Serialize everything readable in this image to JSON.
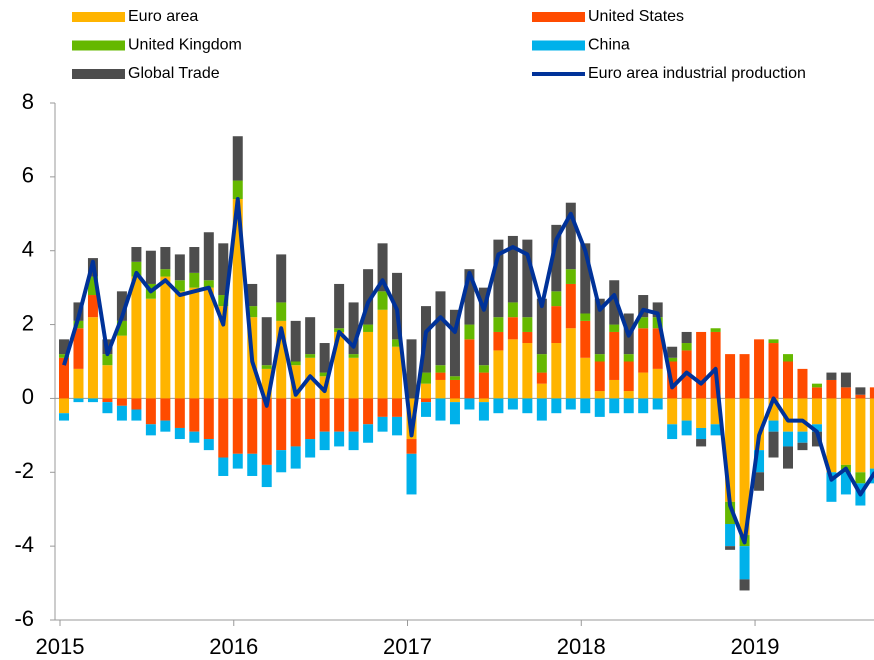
{
  "chart_data": {
    "type": "bar",
    "stacked": true,
    "categories": [
      "2015",
      null,
      null,
      null,
      null,
      null,
      null,
      null,
      null,
      null,
      null,
      null,
      "2016",
      null,
      null,
      null,
      null,
      null,
      null,
      null,
      null,
      null,
      null,
      null,
      "2017",
      null,
      null,
      null,
      null,
      null,
      null,
      null,
      null,
      null,
      null,
      null,
      "2018",
      null,
      null,
      null,
      null,
      null,
      null,
      null,
      null,
      null,
      null,
      null,
      "2019",
      null,
      null,
      null,
      null,
      null,
      null,
      null,
      null
    ],
    "ylim": [
      -6,
      8
    ],
    "yticks": [
      -6,
      -4,
      -2,
      0,
      2,
      4,
      6,
      8
    ],
    "series": [
      {
        "name": "Euro area",
        "color": "#FFB400",
        "values": [
          -0.4,
          0.8,
          2.2,
          0.9,
          1.7,
          3.3,
          2.7,
          3.3,
          2.9,
          3.0,
          3.0,
          2.5,
          5.4,
          2.2,
          0.8,
          2.1,
          0.9,
          1.1,
          0.6,
          1.8,
          1.1,
          1.8,
          2.4,
          1.4,
          -1.1,
          0.4,
          0.5,
          -0.1,
          0.0,
          -0.1,
          1.3,
          1.6,
          1.5,
          0.4,
          1.5,
          1.9,
          1.1,
          0.2,
          0.5,
          0.2,
          0.7,
          0.8,
          -0.7,
          -0.6,
          -0.8,
          -0.7,
          -2.8,
          -3.7,
          -1.4,
          -0.6,
          -0.9,
          -0.9,
          -0.7,
          -2.0,
          -1.8,
          -2.0,
          -1.9
        ]
      },
      {
        "name": "United States",
        "color": "#FF4B00",
        "values": [
          1.1,
          1.1,
          0.6,
          -0.1,
          -0.2,
          -0.3,
          -0.7,
          -0.6,
          -0.8,
          -0.9,
          -1.1,
          -1.6,
          -1.5,
          -1.5,
          -1.8,
          -1.4,
          -1.3,
          -1.1,
          -0.9,
          -0.9,
          -0.9,
          -0.7,
          -0.5,
          -0.5,
          -0.4,
          -0.1,
          0.2,
          0.5,
          1.6,
          0.7,
          0.5,
          0.6,
          0.3,
          0.3,
          1.0,
          1.2,
          1.0,
          0.8,
          1.3,
          0.8,
          1.2,
          1.1,
          1.0,
          1.3,
          1.8,
          1.8,
          1.2,
          1.2,
          1.6,
          1.5,
          1.0,
          0.8,
          0.3,
          0.5,
          0.3,
          0.1,
          0.3
        ]
      },
      {
        "name": "United Kingdom",
        "color": "#65B800",
        "values": [
          0.1,
          0.2,
          0.5,
          0.3,
          0.4,
          0.4,
          0.4,
          0.2,
          0.3,
          0.4,
          0.2,
          0.3,
          0.5,
          0.3,
          0.1,
          0.5,
          0.1,
          0.1,
          0.1,
          0.1,
          0.1,
          0.2,
          0.5,
          0.2,
          0.0,
          0.3,
          0.2,
          0.1,
          0.4,
          0.2,
          0.4,
          0.4,
          0.4,
          0.5,
          0.4,
          0.4,
          0.2,
          0.2,
          0.2,
          0.2,
          0.3,
          0.3,
          0.1,
          0.2,
          0.0,
          0.1,
          -0.6,
          -0.3,
          0.0,
          0.1,
          0.2,
          0.0,
          0.1,
          0.0,
          -0.2,
          -0.3,
          0.0
        ]
      },
      {
        "name": "China",
        "color": "#00B1EA",
        "values": [
          -0.2,
          -0.1,
          -0.1,
          -0.3,
          -0.4,
          -0.3,
          -0.3,
          -0.3,
          -0.3,
          -0.3,
          -0.3,
          -0.5,
          -0.4,
          -0.6,
          -0.6,
          -0.6,
          -0.6,
          -0.5,
          -0.5,
          -0.4,
          -0.5,
          -0.5,
          -0.4,
          -0.5,
          -1.1,
          -0.4,
          -0.6,
          -0.6,
          -0.3,
          -0.5,
          -0.4,
          -0.3,
          -0.4,
          -0.6,
          -0.4,
          -0.3,
          -0.4,
          -0.5,
          -0.4,
          -0.4,
          -0.4,
          -0.3,
          -0.4,
          -0.4,
          -0.3,
          -0.3,
          -0.6,
          -0.9,
          -0.6,
          -0.3,
          -0.4,
          -0.3,
          -0.2,
          -0.8,
          -0.6,
          -0.6,
          -0.4
        ]
      },
      {
        "name": "Global Trade",
        "color": "#4D4D4D",
        "values": [
          0.4,
          0.5,
          0.5,
          0.4,
          0.8,
          0.4,
          0.9,
          0.6,
          0.7,
          0.7,
          1.3,
          1.4,
          1.2,
          0.6,
          1.3,
          1.3,
          1.1,
          1.0,
          0.8,
          1.2,
          1.4,
          1.5,
          1.3,
          1.8,
          1.6,
          1.8,
          2.0,
          1.8,
          1.5,
          2.1,
          2.1,
          1.8,
          2.1,
          1.5,
          1.8,
          1.8,
          1.9,
          1.5,
          1.2,
          1.1,
          0.6,
          0.4,
          0.3,
          0.3,
          -0.2,
          0.0,
          -0.1,
          -0.3,
          -0.5,
          -0.7,
          -0.6,
          -0.2,
          -0.4,
          0.2,
          0.4,
          0.2,
          0.0
        ]
      },
      {
        "name": "Euro area industrial production",
        "color": "#003299",
        "type": "line",
        "values": [
          0.9,
          2.2,
          3.7,
          1.2,
          2.2,
          3.4,
          2.9,
          3.2,
          2.8,
          2.9,
          3.0,
          2.0,
          5.4,
          1.0,
          -0.2,
          1.9,
          0.1,
          0.6,
          0.2,
          1.8,
          1.4,
          2.6,
          3.2,
          2.4,
          -1.0,
          1.8,
          2.2,
          1.8,
          3.4,
          2.4,
          3.9,
          4.1,
          3.9,
          2.5,
          4.3,
          5.0,
          4.0,
          2.4,
          2.8,
          1.7,
          2.4,
          2.3,
          0.3,
          0.7,
          0.4,
          0.8,
          -2.9,
          -3.9,
          -1.0,
          0.0,
          -0.6,
          -0.6,
          -0.9,
          -2.2,
          -1.9,
          -2.6,
          -2.0
        ]
      }
    ]
  }
}
